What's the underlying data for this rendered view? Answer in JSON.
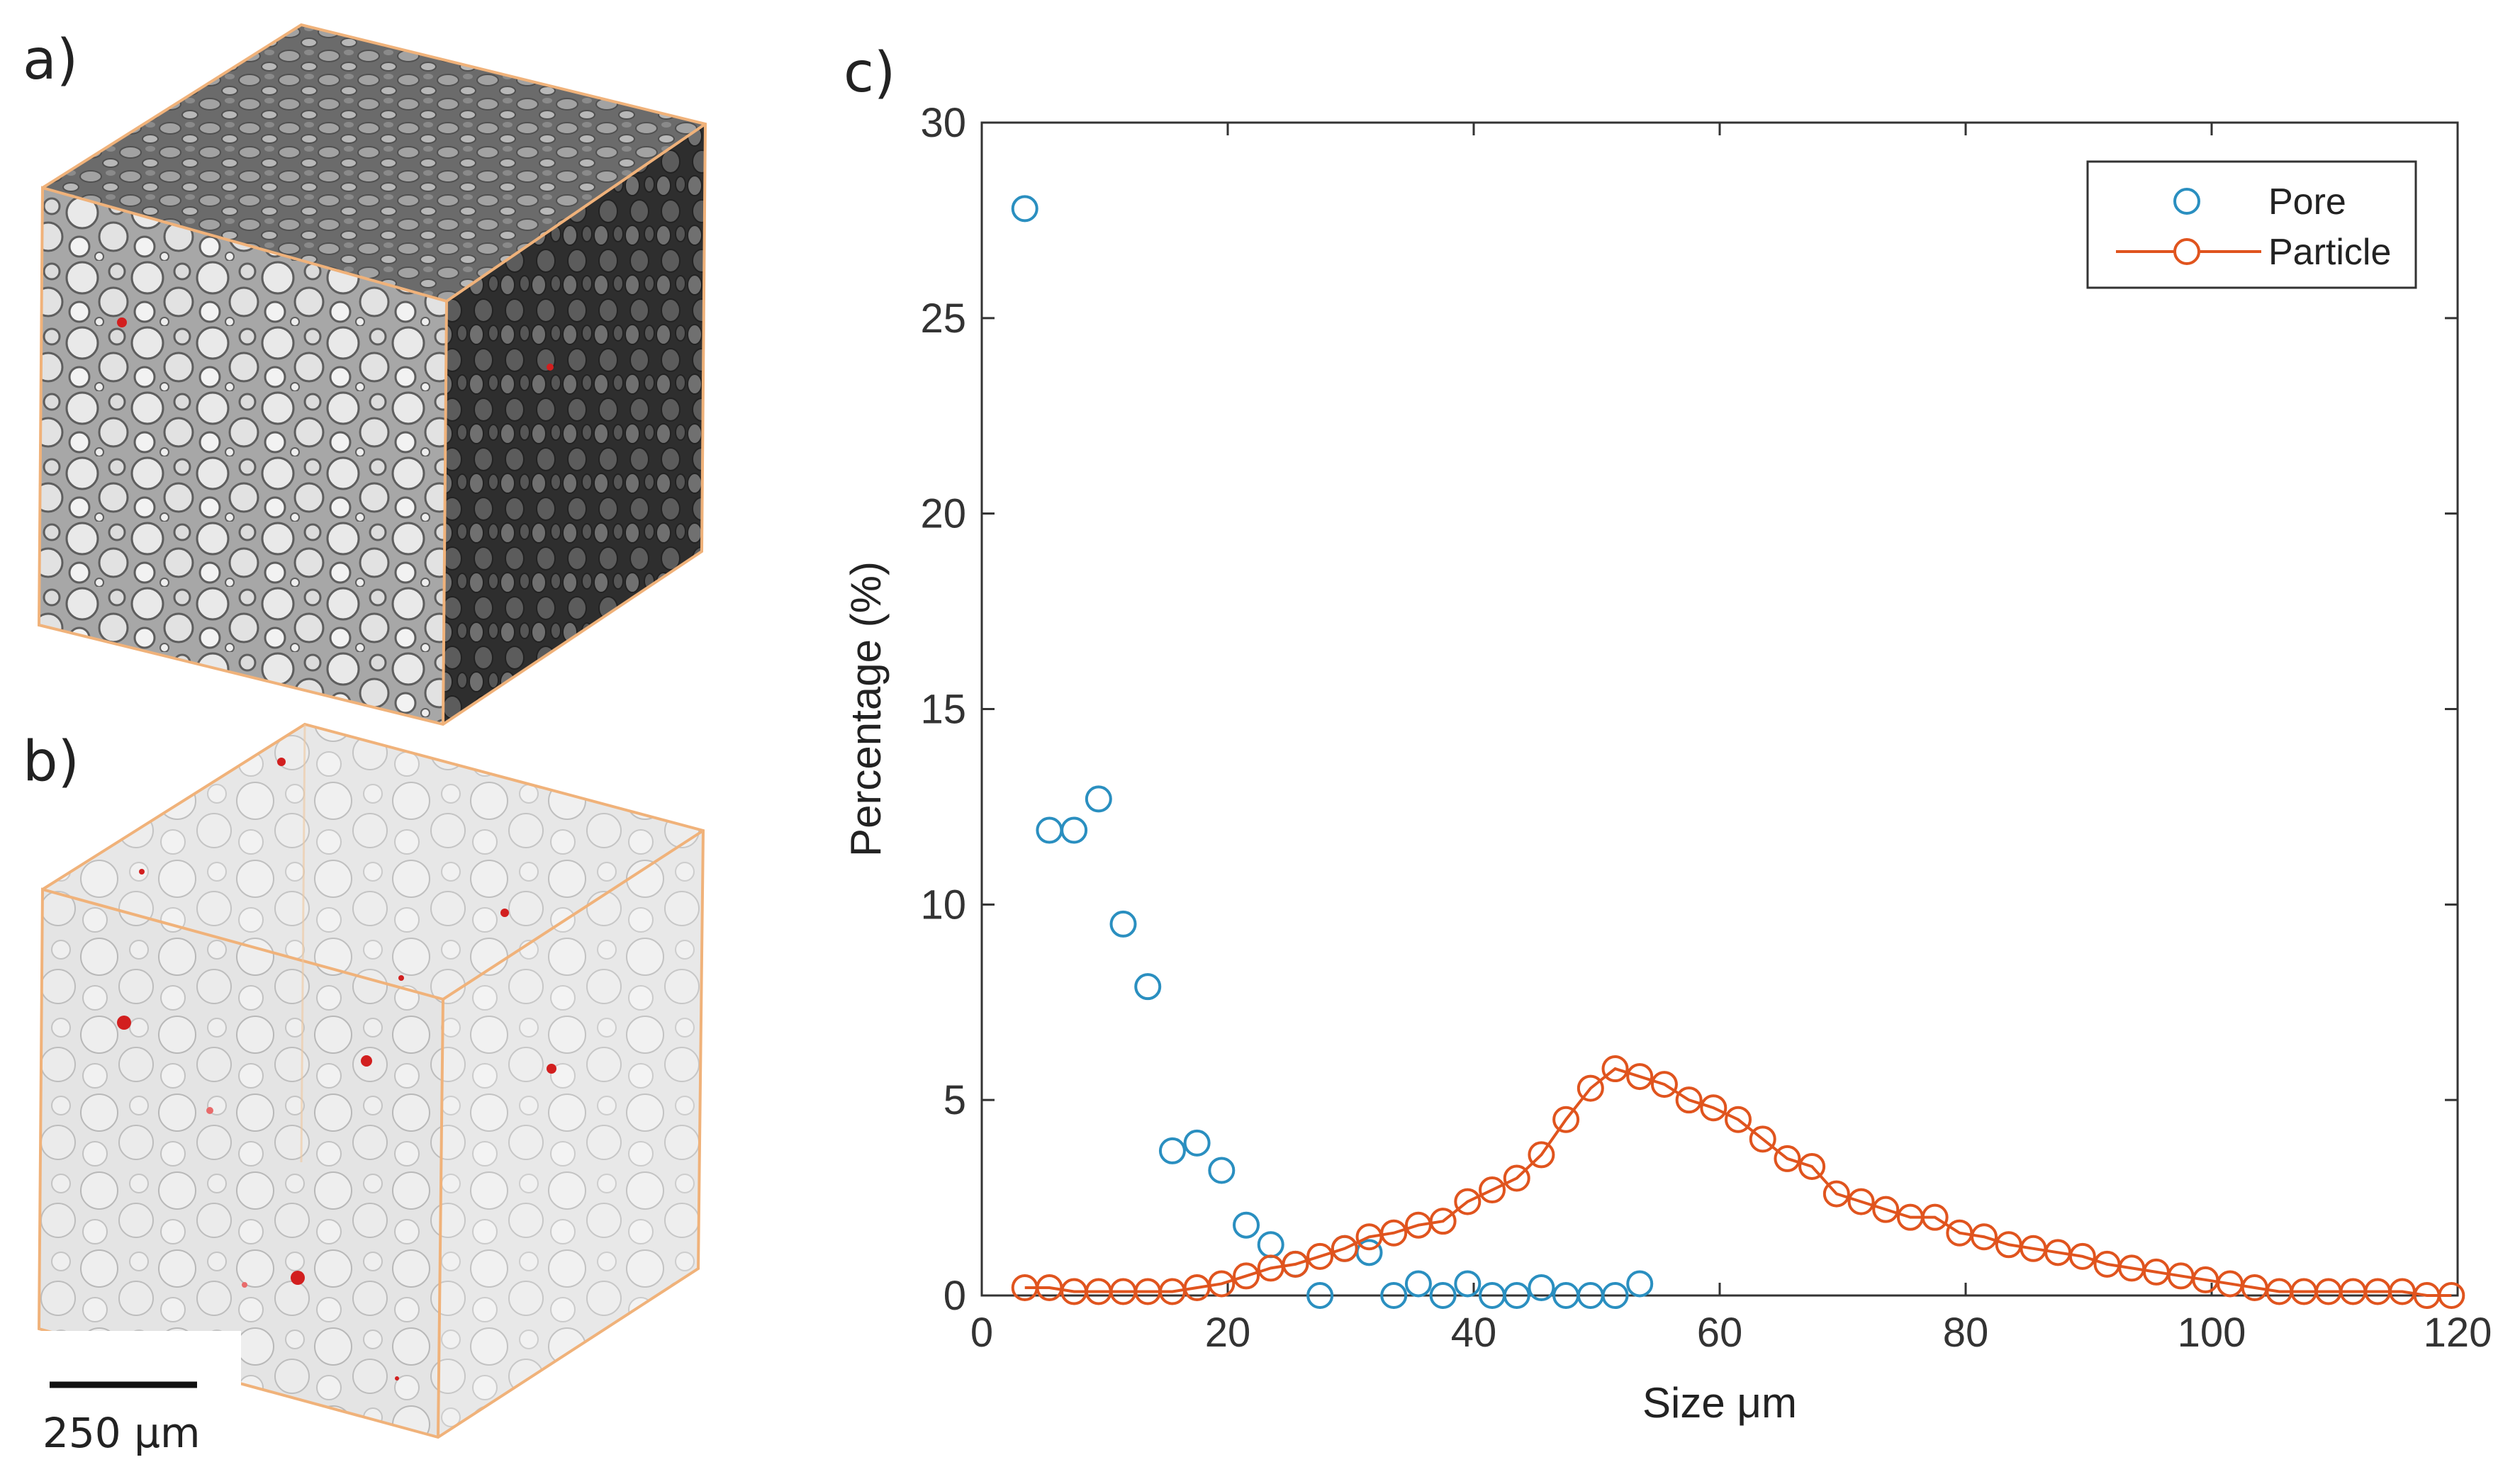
{
  "panels": {
    "a": "a)",
    "b": "b)",
    "c": "c)"
  },
  "scale_bar": {
    "label": "250 μm"
  },
  "colors": {
    "pore": "#2a8fc0",
    "particle": "#e0541e",
    "box_edge": "#f0b27a",
    "pore_marker": "#d21f1f"
  },
  "chart_data": {
    "type": "scatter",
    "title": "",
    "xlabel": "Size μm",
    "ylabel": "Percentage (%)",
    "xlim": [
      0,
      120
    ],
    "ylim": [
      0,
      30
    ],
    "xticks": [
      0,
      20,
      40,
      60,
      80,
      100,
      120
    ],
    "yticks": [
      0,
      5,
      10,
      15,
      20,
      25,
      30
    ],
    "legend_position": "top-right",
    "series": [
      {
        "name": "Pore",
        "style": "markers",
        "x": [
          3.5,
          5.5,
          7.5,
          9.5,
          11.5,
          13.5,
          15.5,
          17.5,
          19.5,
          21.5,
          23.5,
          25.5,
          27.5,
          29.5,
          31.5,
          33.5,
          35.5,
          37.5,
          39.5,
          41.5,
          43.5,
          45.5,
          47.5,
          49.5,
          51.5,
          53.5
        ],
        "y": [
          27.8,
          11.9,
          11.9,
          12.7,
          9.5,
          7.9,
          3.7,
          3.9,
          3.2,
          1.8,
          1.3,
          0.8,
          0.0,
          1.2,
          1.1,
          0.0,
          0.3,
          0.0,
          0.3,
          0.0,
          0.0,
          0.2,
          0.0,
          0.0,
          0.0,
          0.3
        ]
      },
      {
        "name": "Particle",
        "style": "line-markers",
        "x": [
          3.5,
          5.5,
          7.5,
          9.5,
          11.5,
          13.5,
          15.5,
          17.5,
          19.5,
          21.5,
          23.5,
          25.5,
          27.5,
          29.5,
          31.5,
          33.5,
          35.5,
          37.5,
          39.5,
          41.5,
          43.5,
          45.5,
          47.5,
          49.5,
          51.5,
          53.5,
          55.5,
          57.5,
          59.5,
          61.5,
          63.5,
          65.5,
          67.5,
          69.5,
          71.5,
          73.5,
          75.5,
          77.5,
          79.5,
          81.5,
          83.5,
          85.5,
          87.5,
          89.5,
          91.5,
          93.5,
          95.5,
          97.5,
          99.5,
          101.5,
          103.5,
          105.5,
          107.5,
          109.5,
          111.5,
          113.5,
          115.5,
          117.5,
          119.5
        ],
        "y": [
          0.2,
          0.2,
          0.1,
          0.1,
          0.1,
          0.1,
          0.1,
          0.2,
          0.3,
          0.5,
          0.7,
          0.8,
          1.0,
          1.2,
          1.5,
          1.6,
          1.8,
          1.9,
          2.4,
          2.7,
          3.0,
          3.6,
          4.5,
          5.3,
          5.8,
          5.6,
          5.4,
          5.0,
          4.8,
          4.5,
          4.0,
          3.5,
          3.3,
          2.6,
          2.4,
          2.2,
          2.0,
          2.0,
          1.6,
          1.5,
          1.3,
          1.2,
          1.1,
          1.0,
          0.8,
          0.7,
          0.6,
          0.5,
          0.4,
          0.3,
          0.2,
          0.1,
          0.1,
          0.1,
          0.1,
          0.1,
          0.1,
          0.0,
          0.0
        ]
      }
    ]
  }
}
